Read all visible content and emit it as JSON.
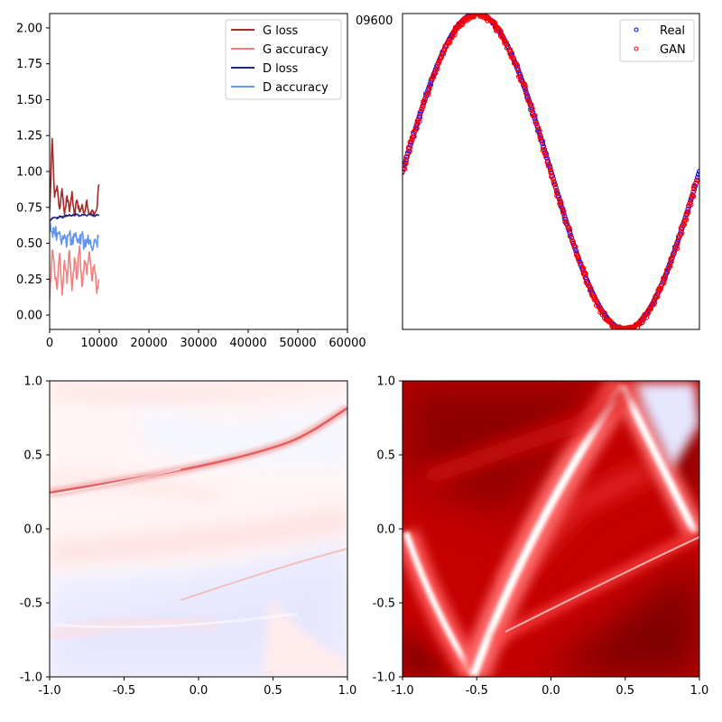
{
  "chart_data": [
    {
      "panel": "training-curves",
      "type": "line",
      "xlim": [
        0,
        60000
      ],
      "ylim": [
        -0.1,
        2.1
      ],
      "xticks": [
        0,
        10000,
        20000,
        30000,
        40000,
        50000,
        60000
      ],
      "yticks": [
        0.0,
        0.25,
        0.5,
        0.75,
        1.0,
        1.25,
        1.5,
        1.75,
        2.0
      ],
      "xtick_labels": [
        "0",
        "10000",
        "20000",
        "30000",
        "40000",
        "50000",
        "60000"
      ],
      "ytick_labels": [
        "0.00",
        "0.25",
        "0.50",
        "0.75",
        "1.00",
        "1.25",
        "1.50",
        "1.75",
        "2.00"
      ],
      "legend_position": "top-right",
      "x": [
        0,
        500,
        1000,
        1500,
        2000,
        2500,
        3000,
        3500,
        4000,
        4500,
        5000,
        5500,
        6000,
        6500,
        7000,
        7500,
        8000,
        8500,
        9000,
        9500,
        9900
      ],
      "series": [
        {
          "name": "G loss",
          "color": "#a52a2a",
          "values": [
            0.72,
            1.23,
            0.82,
            0.9,
            0.74,
            0.88,
            0.7,
            0.83,
            0.72,
            0.86,
            0.69,
            0.8,
            0.72,
            0.77,
            0.71,
            0.8,
            0.7,
            0.73,
            0.69,
            0.74,
            0.91
          ]
        },
        {
          "name": "G accuracy",
          "color": "#f08080",
          "values": [
            0.1,
            0.45,
            0.3,
            0.18,
            0.43,
            0.14,
            0.38,
            0.22,
            0.45,
            0.17,
            0.4,
            0.25,
            0.48,
            0.2,
            0.38,
            0.28,
            0.44,
            0.24,
            0.35,
            0.15,
            0.25
          ]
        },
        {
          "name": "D loss",
          "color": "#1f2a7a",
          "values": [
            0.66,
            0.67,
            0.68,
            0.67,
            0.69,
            0.68,
            0.69,
            0.69,
            0.7,
            0.69,
            0.7,
            0.7,
            0.69,
            0.7,
            0.7,
            0.69,
            0.7,
            0.7,
            0.69,
            0.7,
            0.7
          ]
        },
        {
          "name": "D accuracy",
          "color": "#6495ed",
          "values": [
            0.62,
            0.58,
            0.6,
            0.55,
            0.58,
            0.52,
            0.56,
            0.5,
            0.57,
            0.49,
            0.55,
            0.52,
            0.5,
            0.56,
            0.48,
            0.53,
            0.5,
            0.47,
            0.52,
            0.5,
            0.55
          ]
        }
      ]
    },
    {
      "panel": "samples",
      "type": "scatter",
      "xlim": [
        -1,
        1
      ],
      "ylim": [
        -1,
        1
      ],
      "ytick_label": "09600",
      "legend_position": "top-right",
      "series": [
        {
          "name": "Real",
          "color": "#0000ff",
          "function": "y = -sin(pi * x)",
          "x_range": [
            -1,
            1
          ]
        },
        {
          "name": "GAN",
          "color": "#ff0000",
          "function": "y = -sin(pi * x)",
          "x_range": [
            -1,
            0.98
          ]
        }
      ]
    },
    {
      "panel": "discriminator-field-1",
      "type": "heatmap",
      "xlim": [
        -1,
        1
      ],
      "ylim": [
        -1,
        1
      ],
      "xtick_labels": [
        "-1.0",
        "-0.5",
        "0.0",
        "0.5",
        "1.0"
      ],
      "ytick_labels": [
        "-1.0",
        "-0.5",
        "0.0",
        "0.5",
        "1.0"
      ],
      "colormap": "bwr"
    },
    {
      "panel": "discriminator-field-2",
      "type": "heatmap",
      "xlim": [
        -1,
        1
      ],
      "ylim": [
        -1,
        1
      ],
      "xtick_labels": [
        "-1.0",
        "-0.5",
        "0.0",
        "0.5",
        "1.0"
      ],
      "ytick_labels": [
        "-1.0",
        "-0.5",
        "0.0",
        "0.5",
        "1.0"
      ],
      "colormap": "seismic"
    }
  ]
}
